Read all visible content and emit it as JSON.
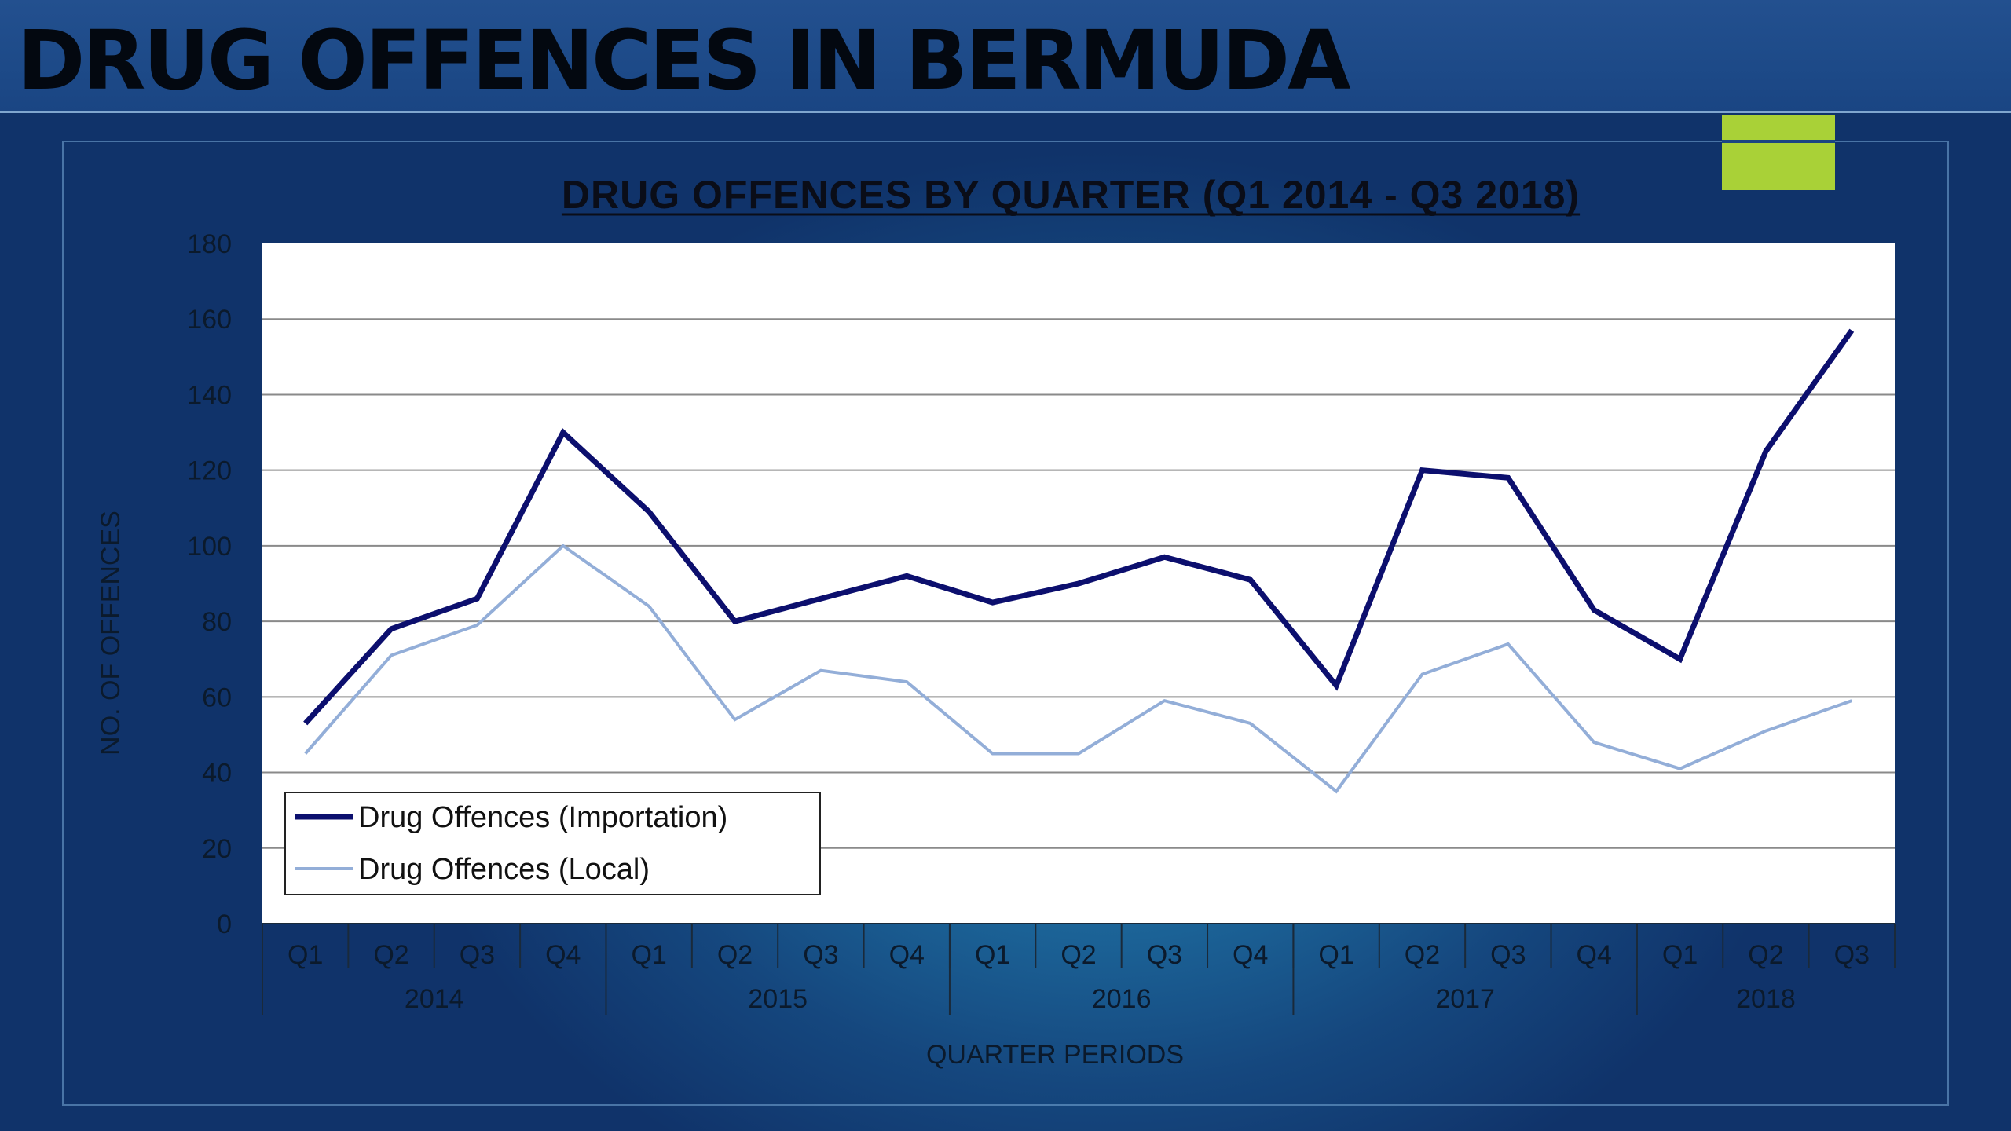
{
  "header": {
    "title": "DRUG OFFENCES IN BERMUDA"
  },
  "colors": {
    "importation": "#0c0f6e",
    "local": "#93aed8",
    "accent": "#a9d137"
  },
  "chart_data": {
    "type": "line",
    "title": "DRUG OFFENCES BY QUARTER (Q1 2014 - Q3 2018)",
    "xlabel": "QUARTER PERIODS",
    "ylabel": "NO. OF OFFENCES",
    "ylim": [
      0,
      180
    ],
    "yticks": [
      "0",
      "20",
      "40",
      "60",
      "80",
      "100",
      "120",
      "140",
      "160",
      "180"
    ],
    "grid": true,
    "legend_position": "bottom-left",
    "categories": [
      "Q1",
      "Q2",
      "Q3",
      "Q4",
      "Q1",
      "Q2",
      "Q3",
      "Q4",
      "Q1",
      "Q2",
      "Q3",
      "Q4",
      "Q1",
      "Q2",
      "Q3",
      "Q4",
      "Q1",
      "Q2",
      "Q3"
    ],
    "groups": [
      {
        "label": "2014",
        "count": 4
      },
      {
        "label": "2015",
        "count": 4
      },
      {
        "label": "2016",
        "count": 4
      },
      {
        "label": "2017",
        "count": 4
      },
      {
        "label": "2018",
        "count": 3
      }
    ],
    "series": [
      {
        "name": "Drug Offences (Importation)",
        "values": [
          53,
          78,
          86,
          130,
          109,
          80,
          86,
          92,
          85,
          90,
          97,
          91,
          63,
          120,
          118,
          83,
          70,
          125,
          157
        ]
      },
      {
        "name": "Drug Offences (Local)",
        "values": [
          45,
          71,
          79,
          100,
          84,
          54,
          67,
          64,
          45,
          45,
          59,
          53,
          35,
          66,
          74,
          48,
          41,
          51,
          59
        ]
      }
    ]
  }
}
